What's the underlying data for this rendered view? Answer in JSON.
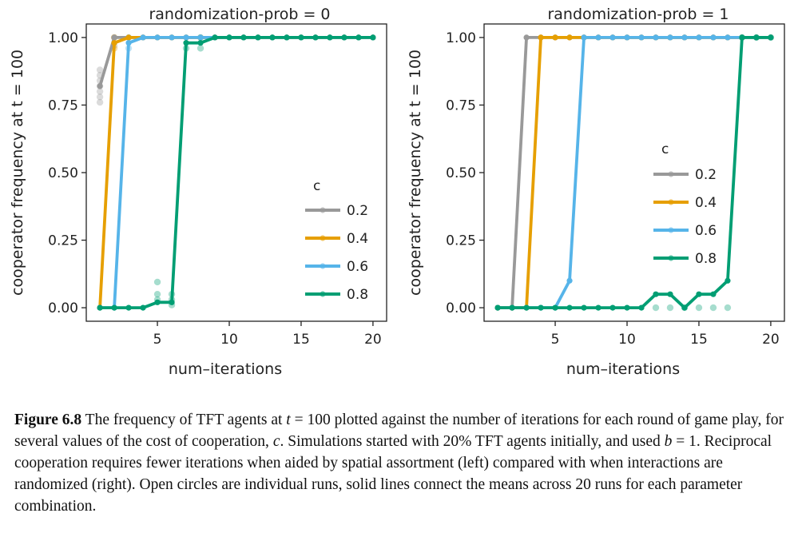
{
  "chart_data": [
    {
      "type": "line",
      "title": "randomization-prob = 0",
      "xlabel": "num–iterations",
      "ylabel": "cooperator frequency at t = 100",
      "xlim": [
        0.05,
        20.95
      ],
      "ylim": [
        -0.05,
        1.05
      ],
      "xticks": [
        5,
        10,
        15,
        20
      ],
      "yticks": [
        "0.00",
        "0.25",
        "0.50",
        "0.75",
        "1.00"
      ],
      "grid": false,
      "legend": {
        "title": "c",
        "placement": "center-right"
      },
      "series": [
        {
          "name": "0.2",
          "color": "#999999",
          "x": [
            1,
            2,
            3,
            4,
            5,
            6,
            7,
            8,
            9,
            10,
            11,
            12,
            13,
            14,
            15,
            16,
            17,
            18,
            19,
            20
          ],
          "y": [
            0.82,
            1,
            1,
            1,
            1,
            1,
            1,
            1,
            1,
            1,
            1,
            1,
            1,
            1,
            1,
            1,
            1,
            1,
            1,
            1
          ],
          "points": [
            [
              1,
              0.76
            ],
            [
              1,
              0.78
            ],
            [
              1,
              0.8
            ],
            [
              1,
              0.82
            ],
            [
              1,
              0.84
            ],
            [
              1,
              0.86
            ],
            [
              1,
              0.88
            ],
            [
              2,
              0.97
            ],
            [
              2,
              1
            ]
          ]
        },
        {
          "name": "0.4",
          "color": "#E69F00",
          "x": [
            1,
            2,
            3,
            4,
            5,
            6,
            7,
            8,
            9,
            10,
            11,
            12,
            13,
            14,
            15,
            16,
            17,
            18,
            19,
            20
          ],
          "y": [
            0,
            0.98,
            1,
            1,
            1,
            1,
            1,
            1,
            1,
            1,
            1,
            1,
            1,
            1,
            1,
            1,
            1,
            1,
            1,
            1
          ],
          "points": [
            [
              2,
              0.96
            ],
            [
              2,
              1
            ]
          ]
        },
        {
          "name": "0.6",
          "color": "#56B4E9",
          "x": [
            1,
            2,
            3,
            4,
            5,
            6,
            7,
            8,
            9,
            10,
            11,
            12,
            13,
            14,
            15,
            16,
            17,
            18,
            19,
            20
          ],
          "y": [
            0,
            0,
            0.98,
            1,
            1,
            1,
            1,
            1,
            1,
            1,
            1,
            1,
            1,
            1,
            1,
            1,
            1,
            1,
            1,
            1
          ],
          "points": [
            [
              3,
              0.96
            ],
            [
              3,
              1
            ]
          ]
        },
        {
          "name": "0.8",
          "color": "#009E73",
          "x": [
            1,
            2,
            3,
            4,
            5,
            6,
            7,
            8,
            9,
            10,
            11,
            12,
            13,
            14,
            15,
            16,
            17,
            18,
            19,
            20
          ],
          "y": [
            0,
            0,
            0,
            0,
            0.02,
            0.02,
            0.98,
            0.98,
            1,
            1,
            1,
            1,
            1,
            1,
            1,
            1,
            1,
            1,
            1,
            1
          ],
          "points": [
            [
              5,
              0.05
            ],
            [
              5,
              0.095
            ],
            [
              5,
              0.03
            ],
            [
              6,
              0.05
            ],
            [
              6,
              0.03
            ],
            [
              6,
              0.01
            ],
            [
              7,
              0.96
            ],
            [
              8,
              0.96
            ],
            [
              8,
              1
            ]
          ]
        }
      ]
    },
    {
      "type": "line",
      "title": "randomization-prob = 1",
      "xlabel": "num–iterations",
      "ylabel": "cooperator frequency at t = 100",
      "xlim": [
        0.05,
        20.95
      ],
      "ylim": [
        -0.05,
        1.05
      ],
      "xticks": [
        5,
        10,
        15,
        20
      ],
      "yticks": [
        "0.00",
        "0.25",
        "0.50",
        "0.75",
        "1.00"
      ],
      "grid": false,
      "legend": {
        "title": "c",
        "placement": "center-right"
      },
      "series": [
        {
          "name": "0.2",
          "color": "#999999",
          "x": [
            1,
            2,
            3,
            4,
            5,
            6,
            7,
            8,
            9,
            10,
            11,
            12,
            13,
            14,
            15,
            16,
            17,
            18,
            19,
            20
          ],
          "y": [
            0,
            0,
            1,
            1,
            1,
            1,
            1,
            1,
            1,
            1,
            1,
            1,
            1,
            1,
            1,
            1,
            1,
            1,
            1,
            1
          ],
          "points": []
        },
        {
          "name": "0.4",
          "color": "#E69F00",
          "x": [
            1,
            2,
            3,
            4,
            5,
            6,
            7,
            8,
            9,
            10,
            11,
            12,
            13,
            14,
            15,
            16,
            17,
            18,
            19,
            20
          ],
          "y": [
            0,
            0,
            0,
            1,
            1,
            1,
            1,
            1,
            1,
            1,
            1,
            1,
            1,
            1,
            1,
            1,
            1,
            1,
            1,
            1
          ],
          "points": []
        },
        {
          "name": "0.6",
          "color": "#56B4E9",
          "x": [
            1,
            2,
            3,
            4,
            5,
            6,
            7,
            8,
            9,
            10,
            11,
            12,
            13,
            14,
            15,
            16,
            17,
            18,
            19,
            20
          ],
          "y": [
            0,
            0,
            0,
            0,
            0,
            0.1,
            1,
            1,
            1,
            1,
            1,
            1,
            1,
            1,
            1,
            1,
            1,
            1,
            1,
            1
          ],
          "points": []
        },
        {
          "name": "0.8",
          "color": "#009E73",
          "x": [
            1,
            2,
            3,
            4,
            5,
            6,
            7,
            8,
            9,
            10,
            11,
            12,
            13,
            14,
            15,
            16,
            17,
            18,
            19,
            20
          ],
          "y": [
            0,
            0,
            0,
            0,
            0,
            0,
            0,
            0,
            0,
            0,
            0,
            0.05,
            0.05,
            0,
            0.05,
            0.05,
            0.1,
            1,
            1,
            1
          ],
          "points": [
            [
              12,
              0
            ],
            [
              13,
              0
            ],
            [
              14,
              0
            ],
            [
              15,
              0
            ],
            [
              16,
              0
            ],
            [
              17,
              0
            ],
            [
              18,
              1
            ],
            [
              19,
              1
            ],
            [
              20,
              1
            ]
          ]
        }
      ]
    }
  ],
  "caption": {
    "label": "Figure 6.8",
    "text_1": " The frequency of TFT agents at ",
    "math_1": "t",
    "text_2": " = 100 plotted against the number of iterations for each round of game play, for several values of the cost of cooperation, ",
    "math_2": "c",
    "text_3": ". Simulations started with 20% TFT agents initially, and used ",
    "math_3": "b",
    "text_4": " = 1. Reciprocal cooperation requires fewer iterations when aided by spatial assortment (left) compared with when interactions are randomized (right). Open circles are individual runs, solid lines connect the means across 20 runs for each parameter combination."
  }
}
